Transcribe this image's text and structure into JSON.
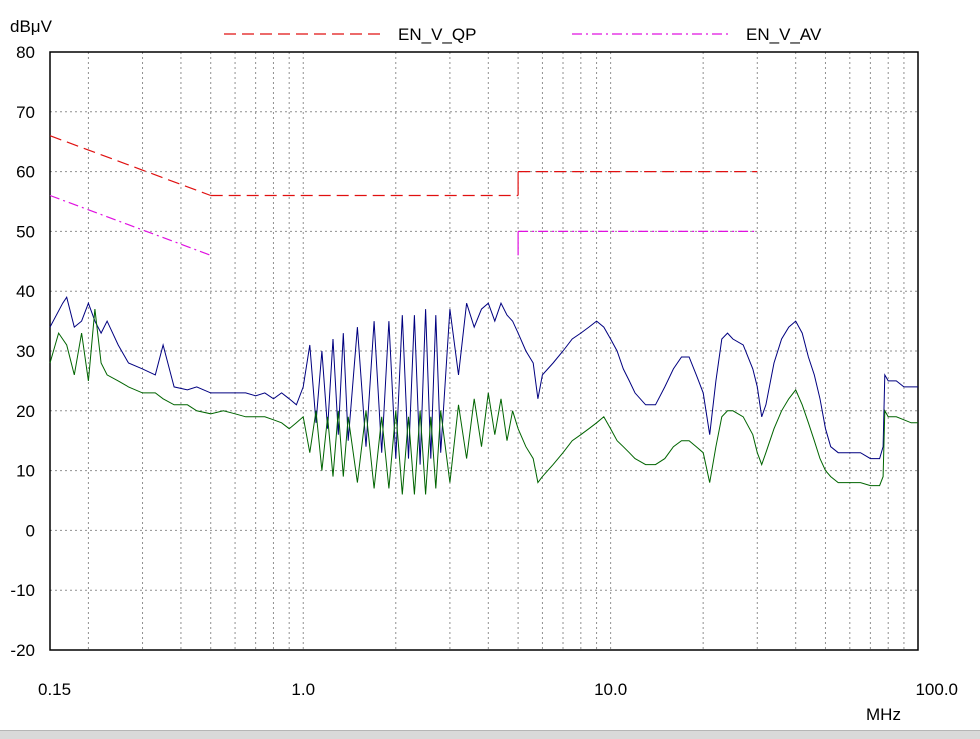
{
  "chart_data": {
    "type": "line",
    "title": "",
    "ylabel": "dBμV",
    "xlabel": "MHz",
    "x_scale": "log",
    "xlim": [
      0.15,
      100
    ],
    "ylim": [
      -20,
      80
    ],
    "grid": true,
    "x_tick_labels": [
      {
        "value": 0.15,
        "label": "0.15"
      },
      {
        "value": 1,
        "label": "1.0"
      },
      {
        "value": 10,
        "label": "10.0"
      },
      {
        "value": 100,
        "label": "100.0"
      }
    ],
    "y_ticks": [
      80,
      70,
      60,
      50,
      40,
      30,
      20,
      10,
      0,
      -10,
      -20
    ],
    "legend_position": "top",
    "colors": {
      "qp_limit": "#e01010",
      "av_limit": "#e010e0",
      "qp_measure": "#000080",
      "av_measure": "#006400",
      "grid": "#909090"
    },
    "series": [
      {
        "name": "EN_V_QP",
        "style": "dashed",
        "color": "#e01010",
        "segments": [
          [
            [
              0.15,
              66
            ],
            [
              0.5,
              56
            ]
          ],
          [
            [
              0.5,
              56
            ],
            [
              5,
              56
            ]
          ],
          [
            [
              5,
              60
            ],
            [
              30,
              60
            ]
          ]
        ]
      },
      {
        "name": "EN_V_AV",
        "style": "dashdot",
        "color": "#e010e0",
        "segments": [
          [
            [
              0.15,
              56
            ],
            [
              0.5,
              46
            ]
          ],
          [
            [
              5,
              50
            ],
            [
              30,
              50
            ]
          ]
        ]
      },
      {
        "name": "",
        "style": "solid",
        "color": "#000080",
        "points": [
          [
            0.15,
            34
          ],
          [
            0.165,
            38
          ],
          [
            0.17,
            39
          ],
          [
            0.18,
            34
          ],
          [
            0.19,
            35
          ],
          [
            0.2,
            38
          ],
          [
            0.21,
            35
          ],
          [
            0.22,
            33
          ],
          [
            0.23,
            35
          ],
          [
            0.25,
            31
          ],
          [
            0.27,
            28
          ],
          [
            0.3,
            27
          ],
          [
            0.33,
            26
          ],
          [
            0.35,
            31
          ],
          [
            0.38,
            24
          ],
          [
            0.42,
            23.5
          ],
          [
            0.45,
            24
          ],
          [
            0.5,
            23
          ],
          [
            0.55,
            23
          ],
          [
            0.6,
            23
          ],
          [
            0.65,
            23
          ],
          [
            0.7,
            22.5
          ],
          [
            0.75,
            23
          ],
          [
            0.8,
            22
          ],
          [
            0.85,
            23
          ],
          [
            0.9,
            22
          ],
          [
            0.95,
            21
          ],
          [
            1.0,
            24
          ],
          [
            1.05,
            31
          ],
          [
            1.1,
            18
          ],
          [
            1.15,
            30
          ],
          [
            1.2,
            17
          ],
          [
            1.25,
            32
          ],
          [
            1.3,
            16
          ],
          [
            1.35,
            33
          ],
          [
            1.4,
            15
          ],
          [
            1.5,
            34
          ],
          [
            1.6,
            14
          ],
          [
            1.7,
            35
          ],
          [
            1.8,
            13
          ],
          [
            1.9,
            35
          ],
          [
            2.0,
            12
          ],
          [
            2.1,
            36
          ],
          [
            2.2,
            12
          ],
          [
            2.3,
            36
          ],
          [
            2.4,
            11
          ],
          [
            2.5,
            37
          ],
          [
            2.6,
            12
          ],
          [
            2.7,
            36
          ],
          [
            2.8,
            13
          ],
          [
            3.0,
            37
          ],
          [
            3.2,
            26
          ],
          [
            3.4,
            38
          ],
          [
            3.6,
            34
          ],
          [
            3.8,
            37
          ],
          [
            4.0,
            38
          ],
          [
            4.2,
            35
          ],
          [
            4.4,
            38
          ],
          [
            4.6,
            36
          ],
          [
            4.8,
            35
          ],
          [
            5.0,
            33
          ],
          [
            5.3,
            30
          ],
          [
            5.6,
            28
          ],
          [
            5.8,
            22
          ],
          [
            6.0,
            26
          ],
          [
            6.5,
            28
          ],
          [
            7.0,
            30
          ],
          [
            7.5,
            32
          ],
          [
            8.0,
            33
          ],
          [
            8.5,
            34
          ],
          [
            9.0,
            35
          ],
          [
            9.5,
            34
          ],
          [
            10.0,
            32
          ],
          [
            10.5,
            30
          ],
          [
            11.0,
            27
          ],
          [
            11.5,
            25
          ],
          [
            12.0,
            23
          ],
          [
            13.0,
            21
          ],
          [
            14.0,
            21
          ],
          [
            15.0,
            24
          ],
          [
            16.0,
            27
          ],
          [
            17.0,
            29
          ],
          [
            18.0,
            29
          ],
          [
            19.0,
            26
          ],
          [
            20.0,
            23
          ],
          [
            21.0,
            16
          ],
          [
            22.0,
            25
          ],
          [
            23.0,
            32
          ],
          [
            24.0,
            33
          ],
          [
            25.0,
            32
          ],
          [
            27.0,
            31
          ],
          [
            29.0,
            27
          ],
          [
            30.0,
            24
          ],
          [
            31.0,
            19
          ],
          [
            32.0,
            21
          ],
          [
            34.0,
            28
          ],
          [
            36.0,
            32
          ],
          [
            38.0,
            34
          ],
          [
            40.0,
            35
          ],
          [
            42.0,
            33
          ],
          [
            44.0,
            29
          ],
          [
            46.0,
            26
          ],
          [
            48.0,
            22
          ],
          [
            50.0,
            17
          ],
          [
            52.0,
            14
          ],
          [
            55.0,
            13
          ],
          [
            60.0,
            13
          ],
          [
            65.0,
            13
          ],
          [
            70.0,
            12
          ],
          [
            75.0,
            12
          ],
          [
            77.0,
            14
          ],
          [
            78.0,
            26
          ],
          [
            80.0,
            25
          ],
          [
            85.0,
            25
          ],
          [
            90.0,
            24
          ],
          [
            95.0,
            24
          ],
          [
            100.0,
            24
          ]
        ]
      },
      {
        "name": "",
        "style": "solid",
        "color": "#006400",
        "points": [
          [
            0.15,
            28
          ],
          [
            0.16,
            33
          ],
          [
            0.17,
            31
          ],
          [
            0.18,
            26
          ],
          [
            0.19,
            33
          ],
          [
            0.2,
            25
          ],
          [
            0.21,
            37
          ],
          [
            0.22,
            28
          ],
          [
            0.23,
            26
          ],
          [
            0.25,
            25
          ],
          [
            0.27,
            24
          ],
          [
            0.3,
            23
          ],
          [
            0.33,
            23
          ],
          [
            0.35,
            22
          ],
          [
            0.38,
            21
          ],
          [
            0.42,
            21
          ],
          [
            0.45,
            20
          ],
          [
            0.5,
            19.5
          ],
          [
            0.55,
            20
          ],
          [
            0.6,
            19.5
          ],
          [
            0.65,
            19
          ],
          [
            0.7,
            19
          ],
          [
            0.75,
            19
          ],
          [
            0.8,
            18.5
          ],
          [
            0.85,
            18
          ],
          [
            0.9,
            17
          ],
          [
            0.95,
            18
          ],
          [
            1.0,
            19
          ],
          [
            1.05,
            13
          ],
          [
            1.1,
            20
          ],
          [
            1.15,
            10
          ],
          [
            1.2,
            19
          ],
          [
            1.25,
            9
          ],
          [
            1.3,
            20
          ],
          [
            1.35,
            9
          ],
          [
            1.4,
            19
          ],
          [
            1.5,
            8
          ],
          [
            1.6,
            20
          ],
          [
            1.7,
            7
          ],
          [
            1.8,
            19
          ],
          [
            1.9,
            7
          ],
          [
            2.0,
            20
          ],
          [
            2.1,
            6
          ],
          [
            2.2,
            19
          ],
          [
            2.3,
            6
          ],
          [
            2.4,
            20
          ],
          [
            2.5,
            6
          ],
          [
            2.6,
            19
          ],
          [
            2.7,
            7
          ],
          [
            2.8,
            20
          ],
          [
            3.0,
            8
          ],
          [
            3.2,
            21
          ],
          [
            3.4,
            12
          ],
          [
            3.6,
            22
          ],
          [
            3.8,
            14
          ],
          [
            4.0,
            23
          ],
          [
            4.2,
            16
          ],
          [
            4.4,
            22
          ],
          [
            4.6,
            15
          ],
          [
            4.8,
            20
          ],
          [
            5.0,
            17
          ],
          [
            5.3,
            14
          ],
          [
            5.6,
            12
          ],
          [
            5.8,
            8
          ],
          [
            6.0,
            9
          ],
          [
            6.5,
            11
          ],
          [
            7.0,
            13
          ],
          [
            7.5,
            15
          ],
          [
            8.0,
            16
          ],
          [
            8.5,
            17
          ],
          [
            9.0,
            18
          ],
          [
            9.5,
            19
          ],
          [
            10.0,
            17
          ],
          [
            10.5,
            15
          ],
          [
            11.0,
            14
          ],
          [
            11.5,
            13
          ],
          [
            12.0,
            12
          ],
          [
            13.0,
            11
          ],
          [
            14.0,
            11
          ],
          [
            15.0,
            12
          ],
          [
            16.0,
            14
          ],
          [
            17.0,
            15
          ],
          [
            18.0,
            15
          ],
          [
            19.0,
            14
          ],
          [
            20.0,
            13
          ],
          [
            21.0,
            8
          ],
          [
            22.0,
            14
          ],
          [
            23.0,
            19
          ],
          [
            24.0,
            20
          ],
          [
            25.0,
            20
          ],
          [
            27.0,
            19
          ],
          [
            29.0,
            16
          ],
          [
            30.0,
            13
          ],
          [
            31.0,
            11
          ],
          [
            32.0,
            13
          ],
          [
            34.0,
            17
          ],
          [
            36.0,
            20
          ],
          [
            38.0,
            22
          ],
          [
            40.0,
            23.5
          ],
          [
            42.0,
            21
          ],
          [
            44.0,
            18
          ],
          [
            46.0,
            15
          ],
          [
            48.0,
            12
          ],
          [
            50.0,
            10
          ],
          [
            52.0,
            9
          ],
          [
            55.0,
            8
          ],
          [
            60.0,
            8
          ],
          [
            65.0,
            8
          ],
          [
            70.0,
            7.5
          ],
          [
            75.0,
            7.5
          ],
          [
            77.0,
            9
          ],
          [
            78.0,
            20
          ],
          [
            80.0,
            19
          ],
          [
            85.0,
            19
          ],
          [
            90.0,
            18.5
          ],
          [
            95.0,
            18
          ],
          [
            100.0,
            18
          ]
        ]
      }
    ]
  }
}
